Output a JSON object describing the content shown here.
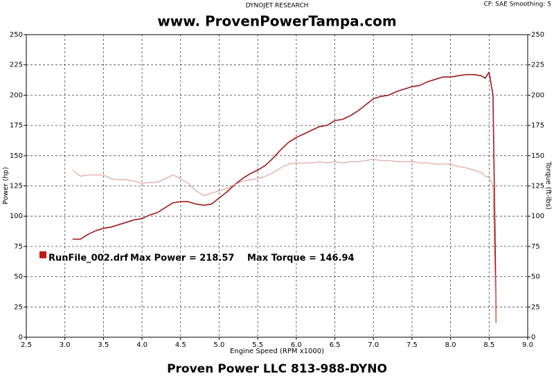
{
  "chart_data": {
    "type": "line",
    "header": "DYNOJET RESEARCH",
    "settings_text": "CF: SAE  Smoothing: 5",
    "title": "www. ProvenPowerTampa.com",
    "footer": "Proven Power LLC 813-988-DYNO",
    "xlabel": "Engine Speed (RPM x1000)",
    "ylabel": "Power (hp)",
    "y2label": "Torque (ft-lbs)",
    "annotations": [
      "Max Power = 218.57",
      "Max Torque = 146.94"
    ],
    "x": [
      3.1,
      3.2,
      3.3,
      3.4,
      3.5,
      3.6,
      3.7,
      3.8,
      3.9,
      4.0,
      4.1,
      4.2,
      4.3,
      4.4,
      4.5,
      4.6,
      4.7,
      4.8,
      4.9,
      5.0,
      5.1,
      5.2,
      5.3,
      5.4,
      5.5,
      5.6,
      5.7,
      5.8,
      5.9,
      6.0,
      6.1,
      6.2,
      6.3,
      6.4,
      6.5,
      6.6,
      6.7,
      6.8,
      6.9,
      7.0,
      7.1,
      7.2,
      7.3,
      7.4,
      7.5,
      7.6,
      7.7,
      7.8,
      7.9,
      8.0,
      8.1,
      8.2,
      8.3,
      8.4,
      8.45,
      8.5,
      8.55,
      8.58,
      8.59
    ],
    "series": [
      {
        "name": "RunFile_002.drf",
        "color": "#a01818",
        "values": [
          81,
          81,
          85,
          88,
          90,
          91,
          93,
          95,
          97,
          98,
          101,
          103,
          107,
          111,
          112,
          112,
          110,
          109,
          110,
          115,
          120,
          126,
          131,
          135,
          138,
          142,
          148,
          155,
          161,
          165,
          168,
          171,
          174,
          175,
          179,
          180,
          183,
          187,
          192,
          197,
          199,
          200,
          203,
          205,
          207,
          208,
          211,
          213,
          215,
          215,
          216,
          217,
          217,
          216,
          214,
          219,
          200,
          70,
          12
        ]
      },
      {
        "color": "#e09090",
        "axis": "y2",
        "values": [
          138,
          133,
          134,
          134,
          134,
          131,
          130,
          130,
          129,
          127,
          128,
          128,
          131,
          134,
          131,
          127,
          121,
          117,
          119,
          121,
          123,
          126,
          129,
          130,
          131,
          133,
          136,
          140,
          143,
          144,
          144,
          144,
          145,
          144,
          145,
          144,
          145,
          145,
          146,
          147,
          146,
          146,
          145,
          145,
          145,
          144,
          144,
          143,
          143,
          143,
          141,
          140,
          138,
          136,
          133,
          132,
          125,
          40,
          12
        ]
      }
    ],
    "xlim": [
      2.5,
      9.0
    ],
    "xticks": [
      2.5,
      {
        "value": 3,
        "label": "3.0"
      },
      3.5,
      {
        "value": 4,
        "label": "4.0"
      },
      4.5,
      {
        "value": 5,
        "label": "5.0"
      },
      5.5,
      {
        "value": 6,
        "label": "6.0"
      },
      6.5,
      {
        "value": 7,
        "label": "7.0"
      },
      7.5,
      {
        "value": 8,
        "label": "8.0"
      },
      8.5,
      {
        "value": 9,
        "label": "9.0"
      }
    ],
    "ylim": [
      0,
      250
    ],
    "yticks": [
      0,
      25,
      50,
      75,
      100,
      125,
      150,
      175,
      200,
      225,
      250
    ],
    "y2lim": [
      0,
      250
    ],
    "y2ticks": [
      0,
      25,
      50,
      75,
      100,
      125,
      150,
      175,
      200,
      225,
      250
    ],
    "grid": true
  }
}
